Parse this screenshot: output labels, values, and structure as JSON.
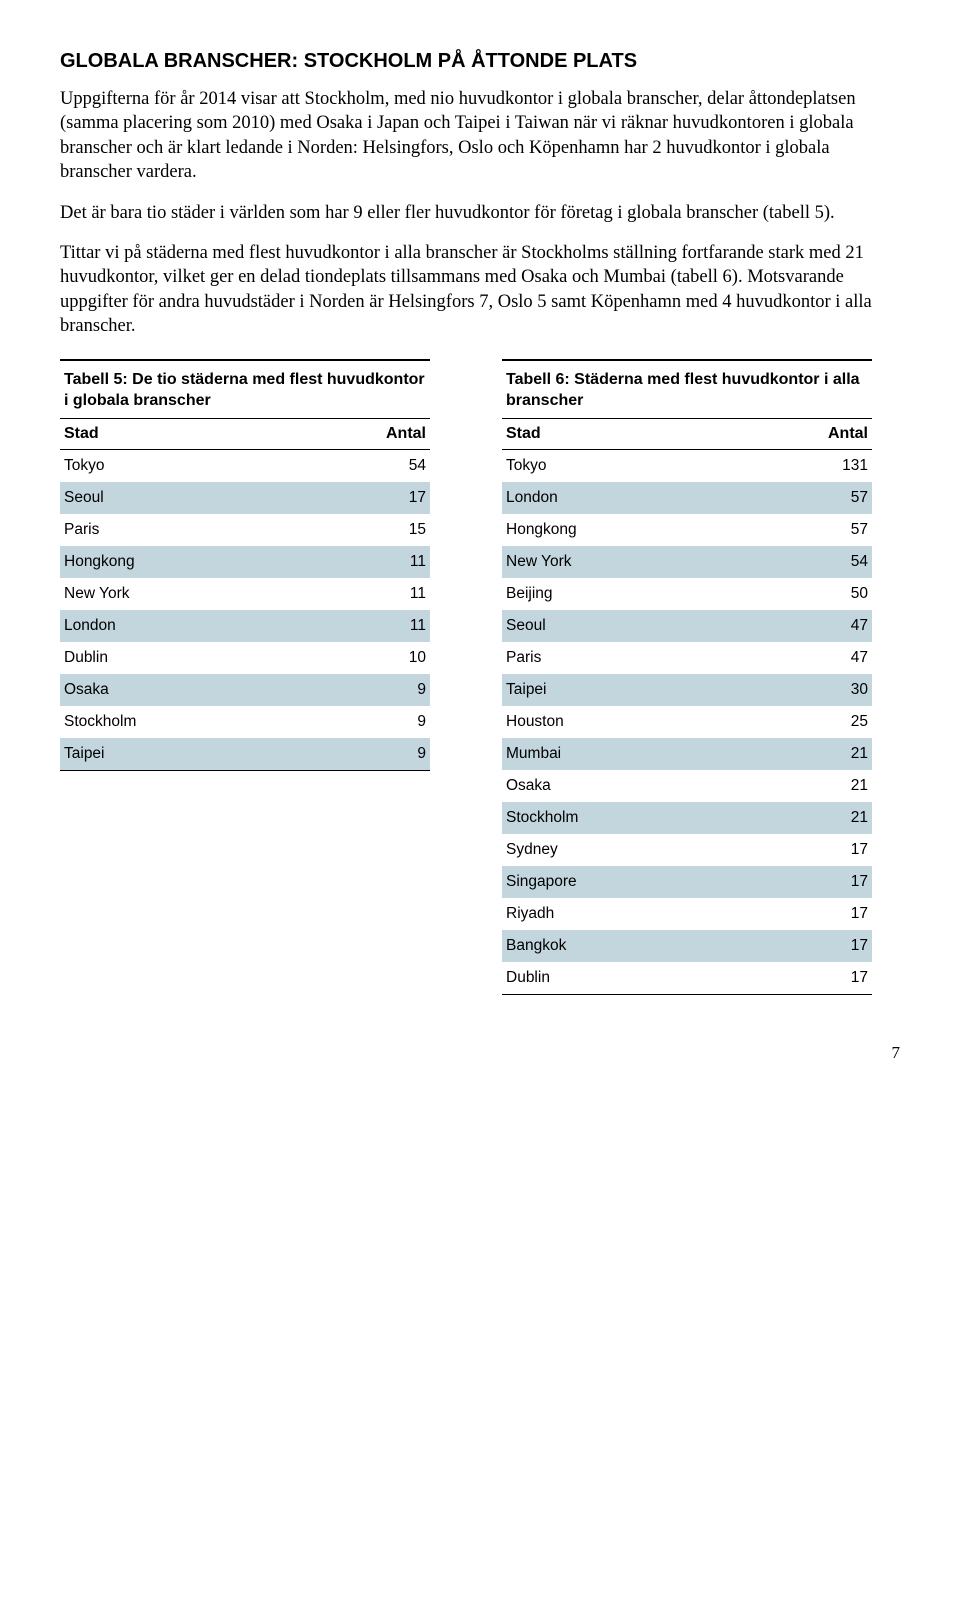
{
  "heading": "GLOBALA BRANSCHER: STOCKHOLM PÅ ÅTTONDE PLATS",
  "para1": "Uppgifterna för år 2014 visar att Stockholm, med nio huvudkontor i globala branscher, delar åttondeplatsen (samma placering som 2010) med Osaka i Japan och Taipei i Taiwan när vi räknar huvudkontoren i globala branscher och är klart ledande i Norden: Helsingfors, Oslo och Köpenhamn har 2 huvudkontor i globala branscher vardera.",
  "para2": "Det är bara tio städer i världen som har 9 eller fler huvudkontor för företag i globala branscher (tabell 5).",
  "para3": "Tittar vi på städerna med flest huvudkontor i alla branscher är Stockholms ställning fortfarande stark med 21 huvudkontor, vilket ger en delad tiondeplats tillsammans med Osaka och Mumbai (tabell 6). Motsvarande uppgifter för andra huvudstäder i Norden är Helsingfors 7, Oslo 5 samt Köpenhamn med 4 huvudkontor i alla branscher.",
  "table5": {
    "title": "Tabell 5: De tio städerna med flest huvudkontor i globala branscher",
    "col1": "Stad",
    "col2": "Antal",
    "rows": [
      {
        "city": "Tokyo",
        "count": "54"
      },
      {
        "city": "Seoul",
        "count": "17"
      },
      {
        "city": "Paris",
        "count": "15"
      },
      {
        "city": "Hongkong",
        "count": "11"
      },
      {
        "city": "New York",
        "count": "11"
      },
      {
        "city": "London",
        "count": "11"
      },
      {
        "city": "Dublin",
        "count": "10"
      },
      {
        "city": "Osaka",
        "count": "9"
      },
      {
        "city": "Stockholm",
        "count": "9"
      },
      {
        "city": "Taipei",
        "count": "9"
      }
    ]
  },
  "table6": {
    "title": "Tabell 6: Städerna med flest huvudkontor i alla branscher",
    "col1": "Stad",
    "col2": "Antal",
    "rows": [
      {
        "city": "Tokyo",
        "count": "131"
      },
      {
        "city": "London",
        "count": "57"
      },
      {
        "city": "Hongkong",
        "count": "57"
      },
      {
        "city": "New York",
        "count": "54"
      },
      {
        "city": "Beijing",
        "count": "50"
      },
      {
        "city": "Seoul",
        "count": "47"
      },
      {
        "city": "Paris",
        "count": "47"
      },
      {
        "city": "Taipei",
        "count": "30"
      },
      {
        "city": "Houston",
        "count": "25"
      },
      {
        "city": "Mumbai",
        "count": "21"
      },
      {
        "city": "Osaka",
        "count": "21"
      },
      {
        "city": "Stockholm",
        "count": "21"
      },
      {
        "city": "Sydney",
        "count": "17"
      },
      {
        "city": "Singapore",
        "count": "17"
      },
      {
        "city": "Riyadh",
        "count": "17"
      },
      {
        "city": "Bangkok",
        "count": "17"
      },
      {
        "city": "Dublin",
        "count": "17"
      }
    ]
  },
  "pageNumber": "7",
  "colors": {
    "altRow": "#c3d5dd",
    "text": "#000000",
    "bg": "#ffffff"
  }
}
